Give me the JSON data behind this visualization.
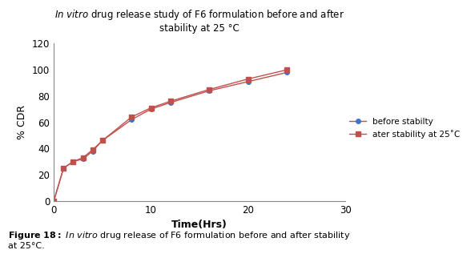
{
  "title_italic": "In vitro",
  "title_rest": " drug release study of F6 formulation before and after",
  "title_line2": "stability at 25 °C",
  "xlabel": "Time(Hrs)",
  "ylabel": "% CDR",
  "xlim": [
    0,
    30
  ],
  "ylim": [
    0,
    120
  ],
  "xticks": [
    0,
    10,
    20,
    30
  ],
  "yticks": [
    0,
    20,
    40,
    60,
    80,
    100,
    120
  ],
  "series1_x": [
    0,
    1,
    2,
    3,
    4,
    5,
    8,
    10,
    12,
    16,
    20,
    24
  ],
  "series1_y": [
    0,
    25,
    30,
    32,
    38,
    46,
    62,
    70,
    75,
    84,
    91,
    98
  ],
  "series2_x": [
    0,
    1,
    2,
    3,
    4,
    5,
    8,
    10,
    12,
    16,
    20,
    24
  ],
  "series2_y": [
    0,
    25,
    30,
    33,
    39,
    46,
    64,
    71,
    76,
    85,
    93,
    100
  ],
  "series1_line_color": "#c0504d",
  "series1_marker_color": "#4472c4",
  "series2_line_color": "#c0504d",
  "series2_marker_color": "#c0504d",
  "series1_label": "before stabilty",
  "series2_label": "ater stability at 25˚C",
  "background_color": "#ffffff"
}
